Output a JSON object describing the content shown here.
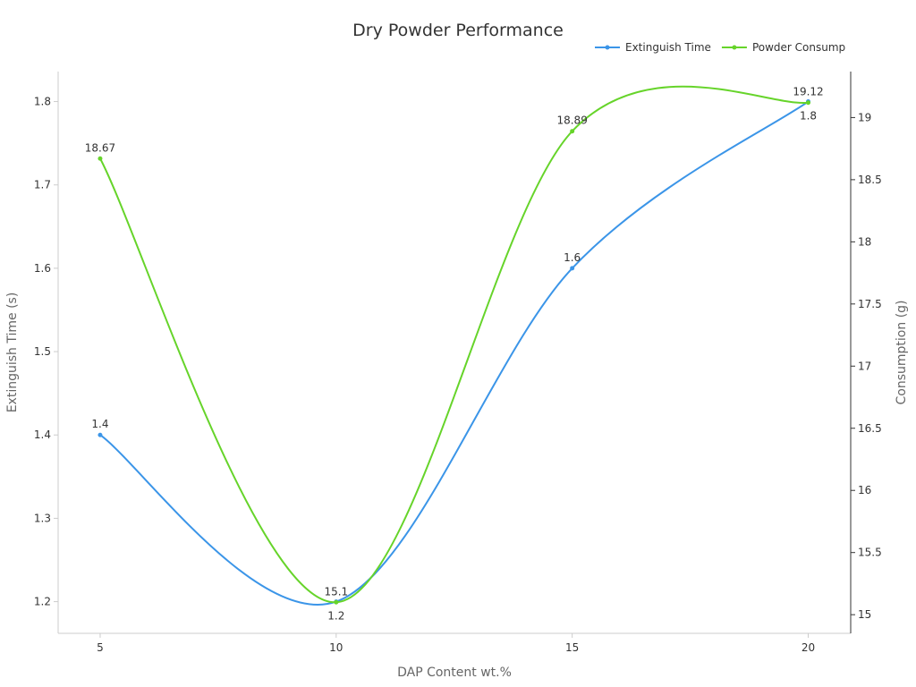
{
  "chart_data": {
    "type": "line",
    "title": "Dry Powder Performance",
    "xlabel": "DAP Content wt.%",
    "ylabel_left": "Extinguish Time (s)",
    "ylabel_right": "Consumption (g)",
    "x": [
      5,
      10,
      15,
      20
    ],
    "xlim": [
      4.11,
      20.9
    ],
    "ylim_left": [
      1.162,
      1.836
    ],
    "ylim_right": [
      14.85,
      19.37
    ],
    "x_ticks": [
      "5",
      "10",
      "15",
      "20"
    ],
    "y_ticks_left": [
      "1.2",
      "1.3",
      "1.4",
      "1.5",
      "1.6",
      "1.7",
      "1.8"
    ],
    "y_ticks_right": [
      "15",
      "15.5",
      "16",
      "16.5",
      "17",
      "17.5",
      "18",
      "18.5",
      "19"
    ],
    "grid": false,
    "legend_position": "top-right",
    "series": [
      {
        "name": "Extinguish Time",
        "axis": "left",
        "color": "#3b95e8",
        "values": [
          1.4,
          1.2,
          1.6,
          1.8
        ],
        "labels": [
          "1.4",
          "1.2",
          "1.6",
          "1.8"
        ]
      },
      {
        "name": "Powder Consump",
        "axis": "right",
        "color": "#66d42a",
        "values": [
          18.67,
          15.1,
          18.89,
          19.12
        ],
        "labels": [
          "18.67",
          "15.1",
          "18.89",
          "19.12"
        ]
      }
    ]
  }
}
